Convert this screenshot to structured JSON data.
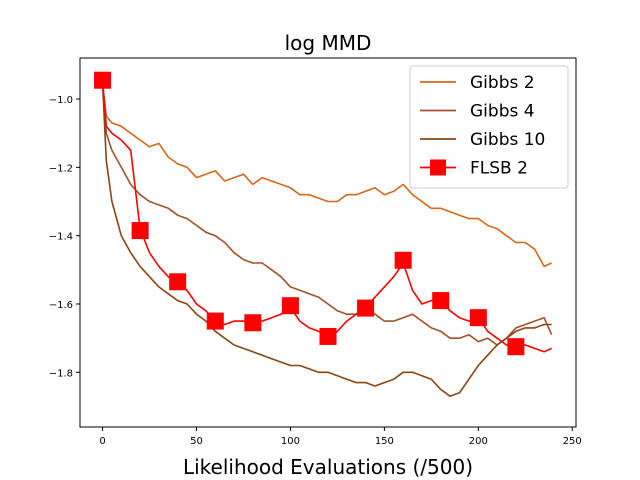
{
  "chart_data": {
    "type": "line",
    "title": "log MMD",
    "xlabel": "Likelihood Evaluations (/500)",
    "ylabel": "",
    "xlim": [
      -12,
      252
    ],
    "ylim": [
      -1.96,
      -0.88
    ],
    "x_ticks": [
      0,
      50,
      100,
      150,
      200,
      250
    ],
    "x_tick_labels": [
      "0",
      "50",
      "100",
      "150",
      "200",
      "250"
    ],
    "y_ticks": [
      -1.0,
      -1.2,
      -1.4,
      -1.6,
      -1.8
    ],
    "y_tick_labels": [
      "−1.0",
      "−1.2",
      "−1.4",
      "−1.6",
      "−1.8"
    ],
    "legend_position": "upper right",
    "series": [
      {
        "name": "Gibbs 2",
        "color": "#d2691e",
        "marker": "none",
        "points": [
          [
            0,
            -0.95
          ],
          [
            2,
            -1.05
          ],
          [
            5,
            -1.07
          ],
          [
            10,
            -1.08
          ],
          [
            15,
            -1.1
          ],
          [
            20,
            -1.12
          ],
          [
            25,
            -1.14
          ],
          [
            30,
            -1.13
          ],
          [
            35,
            -1.17
          ],
          [
            40,
            -1.19
          ],
          [
            45,
            -1.2
          ],
          [
            50,
            -1.23
          ],
          [
            55,
            -1.22
          ],
          [
            60,
            -1.21
          ],
          [
            65,
            -1.24
          ],
          [
            70,
            -1.23
          ],
          [
            75,
            -1.22
          ],
          [
            80,
            -1.25
          ],
          [
            85,
            -1.23
          ],
          [
            90,
            -1.24
          ],
          [
            95,
            -1.25
          ],
          [
            100,
            -1.26
          ],
          [
            105,
            -1.28
          ],
          [
            110,
            -1.28
          ],
          [
            115,
            -1.29
          ],
          [
            120,
            -1.3
          ],
          [
            125,
            -1.3
          ],
          [
            130,
            -1.28
          ],
          [
            135,
            -1.28
          ],
          [
            140,
            -1.27
          ],
          [
            145,
            -1.26
          ],
          [
            150,
            -1.28
          ],
          [
            155,
            -1.27
          ],
          [
            160,
            -1.25
          ],
          [
            165,
            -1.28
          ],
          [
            170,
            -1.3
          ],
          [
            175,
            -1.32
          ],
          [
            180,
            -1.32
          ],
          [
            185,
            -1.33
          ],
          [
            190,
            -1.34
          ],
          [
            195,
            -1.35
          ],
          [
            200,
            -1.35
          ],
          [
            205,
            -1.37
          ],
          [
            210,
            -1.38
          ],
          [
            215,
            -1.4
          ],
          [
            220,
            -1.42
          ],
          [
            225,
            -1.42
          ],
          [
            230,
            -1.44
          ],
          [
            235,
            -1.49
          ],
          [
            239,
            -1.48
          ]
        ]
      },
      {
        "name": "Gibbs 4",
        "color": "#a0522d",
        "marker": "none",
        "points": [
          [
            0,
            -0.95
          ],
          [
            2,
            -1.1
          ],
          [
            5,
            -1.15
          ],
          [
            10,
            -1.2
          ],
          [
            15,
            -1.25
          ],
          [
            20,
            -1.28
          ],
          [
            25,
            -1.3
          ],
          [
            30,
            -1.31
          ],
          [
            35,
            -1.32
          ],
          [
            40,
            -1.34
          ],
          [
            45,
            -1.35
          ],
          [
            50,
            -1.37
          ],
          [
            55,
            -1.39
          ],
          [
            60,
            -1.4
          ],
          [
            65,
            -1.42
          ],
          [
            70,
            -1.45
          ],
          [
            75,
            -1.47
          ],
          [
            80,
            -1.48
          ],
          [
            85,
            -1.48
          ],
          [
            90,
            -1.5
          ],
          [
            95,
            -1.52
          ],
          [
            100,
            -1.55
          ],
          [
            105,
            -1.56
          ],
          [
            110,
            -1.57
          ],
          [
            115,
            -1.58
          ],
          [
            120,
            -1.6
          ],
          [
            125,
            -1.62
          ],
          [
            130,
            -1.63
          ],
          [
            135,
            -1.63
          ],
          [
            140,
            -1.61
          ],
          [
            145,
            -1.63
          ],
          [
            150,
            -1.65
          ],
          [
            155,
            -1.65
          ],
          [
            160,
            -1.64
          ],
          [
            165,
            -1.63
          ],
          [
            170,
            -1.65
          ],
          [
            175,
            -1.67
          ],
          [
            180,
            -1.68
          ],
          [
            185,
            -1.7
          ],
          [
            190,
            -1.7
          ],
          [
            195,
            -1.69
          ],
          [
            200,
            -1.71
          ],
          [
            205,
            -1.7
          ],
          [
            210,
            -1.72
          ],
          [
            215,
            -1.7
          ],
          [
            220,
            -1.67
          ],
          [
            225,
            -1.66
          ],
          [
            230,
            -1.65
          ],
          [
            235,
            -1.64
          ],
          [
            239,
            -1.69
          ]
        ]
      },
      {
        "name": "Gibbs 10",
        "color": "#8b4513",
        "marker": "none",
        "points": [
          [
            0,
            -0.95
          ],
          [
            2,
            -1.18
          ],
          [
            5,
            -1.3
          ],
          [
            10,
            -1.4
          ],
          [
            15,
            -1.45
          ],
          [
            20,
            -1.49
          ],
          [
            25,
            -1.52
          ],
          [
            30,
            -1.55
          ],
          [
            35,
            -1.57
          ],
          [
            40,
            -1.59
          ],
          [
            45,
            -1.6
          ],
          [
            50,
            -1.63
          ],
          [
            55,
            -1.65
          ],
          [
            60,
            -1.68
          ],
          [
            65,
            -1.7
          ],
          [
            70,
            -1.72
          ],
          [
            75,
            -1.73
          ],
          [
            80,
            -1.74
          ],
          [
            85,
            -1.75
          ],
          [
            90,
            -1.76
          ],
          [
            95,
            -1.77
          ],
          [
            100,
            -1.78
          ],
          [
            105,
            -1.78
          ],
          [
            110,
            -1.79
          ],
          [
            115,
            -1.8
          ],
          [
            120,
            -1.8
          ],
          [
            125,
            -1.81
          ],
          [
            130,
            -1.82
          ],
          [
            135,
            -1.83
          ],
          [
            140,
            -1.83
          ],
          [
            145,
            -1.84
          ],
          [
            150,
            -1.83
          ],
          [
            155,
            -1.82
          ],
          [
            160,
            -1.8
          ],
          [
            165,
            -1.8
          ],
          [
            170,
            -1.81
          ],
          [
            175,
            -1.82
          ],
          [
            180,
            -1.85
          ],
          [
            185,
            -1.87
          ],
          [
            190,
            -1.86
          ],
          [
            195,
            -1.82
          ],
          [
            200,
            -1.78
          ],
          [
            205,
            -1.75
          ],
          [
            210,
            -1.72
          ],
          [
            215,
            -1.7
          ],
          [
            220,
            -1.68
          ],
          [
            225,
            -1.67
          ],
          [
            230,
            -1.67
          ],
          [
            235,
            -1.66
          ],
          [
            239,
            -1.66
          ]
        ]
      },
      {
        "name": "FLSB 2",
        "color": "#ff0000",
        "marker": "square",
        "points": [
          [
            0,
            -0.95
          ],
          [
            2,
            -1.08
          ],
          [
            5,
            -1.1
          ],
          [
            10,
            -1.12
          ],
          [
            15,
            -1.15
          ],
          [
            20,
            -1.38
          ],
          [
            25,
            -1.45
          ],
          [
            30,
            -1.49
          ],
          [
            35,
            -1.52
          ],
          [
            40,
            -1.54
          ],
          [
            45,
            -1.56
          ],
          [
            50,
            -1.6
          ],
          [
            55,
            -1.62
          ],
          [
            60,
            -1.65
          ],
          [
            65,
            -1.66
          ],
          [
            70,
            -1.65
          ],
          [
            75,
            -1.65
          ],
          [
            80,
            -1.66
          ],
          [
            85,
            -1.65
          ],
          [
            90,
            -1.64
          ],
          [
            95,
            -1.63
          ],
          [
            100,
            -1.61
          ],
          [
            105,
            -1.65
          ],
          [
            110,
            -1.67
          ],
          [
            115,
            -1.68
          ],
          [
            120,
            -1.7
          ],
          [
            125,
            -1.68
          ],
          [
            130,
            -1.65
          ],
          [
            135,
            -1.63
          ],
          [
            140,
            -1.61
          ],
          [
            145,
            -1.58
          ],
          [
            150,
            -1.55
          ],
          [
            155,
            -1.52
          ],
          [
            160,
            -1.48
          ],
          [
            165,
            -1.56
          ],
          [
            170,
            -1.6
          ],
          [
            175,
            -1.59
          ],
          [
            180,
            -1.59
          ],
          [
            185,
            -1.62
          ],
          [
            190,
            -1.64
          ],
          [
            195,
            -1.65
          ],
          [
            200,
            -1.64
          ],
          [
            205,
            -1.68
          ],
          [
            210,
            -1.7
          ],
          [
            215,
            -1.72
          ],
          [
            220,
            -1.73
          ],
          [
            225,
            -1.72
          ],
          [
            230,
            -1.73
          ],
          [
            235,
            -1.74
          ],
          [
            239,
            -1.73
          ]
        ],
        "marker_points": [
          [
            0,
            -0.945
          ],
          [
            20,
            -1.385
          ],
          [
            40,
            -1.535
          ],
          [
            60,
            -1.65
          ],
          [
            80,
            -1.655
          ],
          [
            100,
            -1.605
          ],
          [
            120,
            -1.695
          ],
          [
            140,
            -1.612
          ],
          [
            160,
            -1.472
          ],
          [
            180,
            -1.59
          ],
          [
            200,
            -1.64
          ],
          [
            220,
            -1.725
          ]
        ]
      }
    ]
  }
}
